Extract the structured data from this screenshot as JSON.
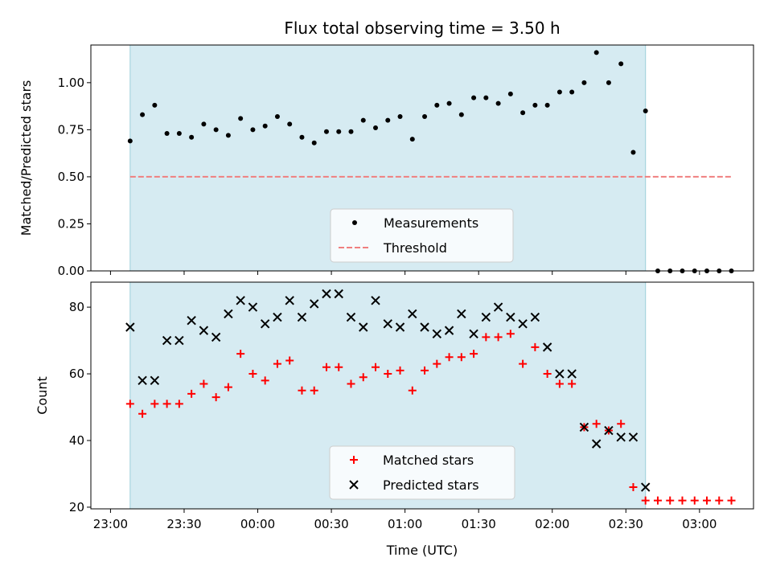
{
  "chart_data": [
    {
      "type": "scatter",
      "title": "Flux total observing time = 3.50 h",
      "ylabel": "Matched/Predicted stars",
      "ylim": [
        0.0,
        1.2
      ],
      "yticks": [
        0.0,
        0.25,
        0.5,
        0.75,
        1.0
      ],
      "ytick_labels": [
        "0.00",
        "0.25",
        "0.50",
        "0.75",
        "1.00"
      ],
      "grid": false,
      "legend_position": "bottom-center",
      "shaded_interval": [
        "23:08",
        "02:38"
      ],
      "series": [
        {
          "name": "Measurements",
          "marker": "dot",
          "color": "#000000",
          "x": [
            "23:08",
            "23:13",
            "23:18",
            "23:23",
            "23:28",
            "23:33",
            "23:38",
            "23:43",
            "23:48",
            "23:53",
            "23:58",
            "00:03",
            "00:08",
            "00:13",
            "00:18",
            "00:23",
            "00:28",
            "00:33",
            "00:38",
            "00:43",
            "00:48",
            "00:53",
            "00:58",
            "01:03",
            "01:08",
            "01:13",
            "01:18",
            "01:23",
            "01:28",
            "01:33",
            "01:38",
            "01:43",
            "01:48",
            "01:53",
            "01:58",
            "02:03",
            "02:08",
            "02:13",
            "02:18",
            "02:23",
            "02:28",
            "02:33",
            "02:38",
            "02:43",
            "02:48",
            "02:53",
            "02:58",
            "03:03",
            "03:08",
            "03:13"
          ],
          "y": [
            0.69,
            0.83,
            0.88,
            0.73,
            0.73,
            0.71,
            0.78,
            0.75,
            0.72,
            0.81,
            0.75,
            0.77,
            0.82,
            0.78,
            0.71,
            0.68,
            0.74,
            0.74,
            0.74,
            0.8,
            0.76,
            0.8,
            0.82,
            0.7,
            0.82,
            0.88,
            0.89,
            0.83,
            0.92,
            0.92,
            0.89,
            0.94,
            0.84,
            0.88,
            0.88,
            0.95,
            0.95,
            1.0,
            1.16,
            1.0,
            1.1,
            0.63,
            0.85,
            0.0,
            0.0,
            0.0,
            0.0,
            0.0,
            0.0,
            0.0
          ]
        },
        {
          "name": "Threshold",
          "style": "dashed",
          "color": "#f07f7f",
          "x": [
            "23:08",
            "03:13"
          ],
          "y": [
            0.5,
            0.5
          ]
        }
      ]
    },
    {
      "type": "scatter",
      "xlabel": "Time (UTC)",
      "ylabel": "Count",
      "ylim": [
        19.5,
        87.5
      ],
      "yticks": [
        20,
        40,
        60,
        80
      ],
      "ytick_labels": [
        "20",
        "40",
        "60",
        "80"
      ],
      "xticks": [
        "23:00",
        "23:30",
        "00:00",
        "00:30",
        "01:00",
        "01:30",
        "02:00",
        "02:30",
        "03:00"
      ],
      "xtick_labels": [
        "23:00",
        "23:30",
        "00:00",
        "00:30",
        "01:00",
        "01:30",
        "02:00",
        "02:30",
        "03:00"
      ],
      "grid": false,
      "legend_position": "bottom-center",
      "shaded_interval": [
        "23:08",
        "02:38"
      ],
      "series": [
        {
          "name": "Matched stars",
          "marker": "plus",
          "color": "#ff0000",
          "x": [
            "23:08",
            "23:13",
            "23:18",
            "23:23",
            "23:28",
            "23:33",
            "23:38",
            "23:43",
            "23:48",
            "23:53",
            "23:58",
            "00:03",
            "00:08",
            "00:13",
            "00:18",
            "00:23",
            "00:28",
            "00:33",
            "00:38",
            "00:43",
            "00:48",
            "00:53",
            "00:58",
            "01:03",
            "01:08",
            "01:13",
            "01:18",
            "01:23",
            "01:28",
            "01:33",
            "01:38",
            "01:43",
            "01:48",
            "01:53",
            "01:58",
            "02:03",
            "02:08",
            "02:13",
            "02:18",
            "02:23",
            "02:28",
            "02:33",
            "02:38",
            "02:43",
            "02:48",
            "02:53",
            "02:58",
            "03:03",
            "03:08",
            "03:13"
          ],
          "y": [
            51,
            48,
            51,
            51,
            51,
            54,
            57,
            53,
            56,
            66,
            60,
            58,
            63,
            64,
            55,
            55,
            62,
            62,
            57,
            59,
            62,
            60,
            61,
            55,
            61,
            63,
            65,
            65,
            66,
            71,
            71,
            72,
            63,
            68,
            60,
            57,
            57,
            44,
            45,
            43,
            45,
            26,
            22,
            22,
            22,
            22,
            22,
            22,
            22,
            22
          ]
        },
        {
          "name": "Predicted stars",
          "marker": "x",
          "color": "#000000",
          "x": [
            "23:08",
            "23:13",
            "23:18",
            "23:23",
            "23:28",
            "23:33",
            "23:38",
            "23:43",
            "23:48",
            "23:53",
            "23:58",
            "00:03",
            "00:08",
            "00:13",
            "00:18",
            "00:23",
            "00:28",
            "00:33",
            "00:38",
            "00:43",
            "00:48",
            "00:53",
            "00:58",
            "01:03",
            "01:08",
            "01:13",
            "01:18",
            "01:23",
            "01:28",
            "01:33",
            "01:38",
            "01:43",
            "01:48",
            "01:53",
            "01:58",
            "02:03",
            "02:08",
            "02:13",
            "02:18",
            "02:23",
            "02:28",
            "02:33",
            "02:38"
          ],
          "y": [
            74,
            58,
            58,
            70,
            70,
            76,
            73,
            71,
            78,
            82,
            80,
            75,
            77,
            82,
            77,
            81,
            84,
            84,
            77,
            74,
            82,
            75,
            74,
            78,
            74,
            72,
            73,
            78,
            72,
            77,
            80,
            77,
            75,
            77,
            68,
            60,
            60,
            44,
            39,
            43,
            41,
            41,
            26
          ]
        }
      ]
    }
  ]
}
